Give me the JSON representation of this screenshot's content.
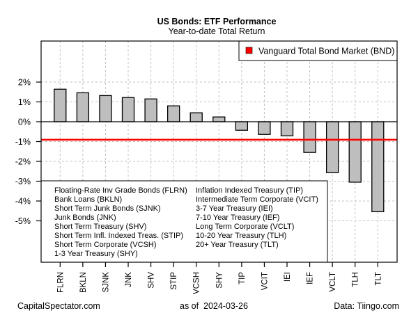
{
  "chart_data": {
    "type": "bar",
    "title": "US Bonds: ETF Performance",
    "subtitle": "Year-to-date Total Return",
    "xlabel": "",
    "ylabel": "",
    "ylim": [
      -7.1,
      4.1
    ],
    "grid": true,
    "yticks": [
      2,
      1,
      0,
      -1,
      -2,
      -3,
      -4,
      -5
    ],
    "ytick_labels": [
      "2%",
      "1%",
      "0%",
      "-1%",
      "-2%",
      "-3%",
      "-4%",
      "-5%"
    ],
    "categories": [
      "FLRN",
      "BKLN",
      "SJNK",
      "JNK",
      "SHV",
      "STIP",
      "VCSH",
      "SHY",
      "TIP",
      "VCIT",
      "IEI",
      "IEF",
      "VCLT",
      "TLH",
      "TLT"
    ],
    "values": [
      1.64,
      1.46,
      1.32,
      1.22,
      1.15,
      0.8,
      0.45,
      0.24,
      -0.43,
      -0.64,
      -0.71,
      -1.55,
      -2.57,
      -3.05,
      -4.54
    ],
    "bar_color": "#bebebe",
    "reference_line": {
      "name": "Vanguard Total Bond Market (BND)",
      "value": -0.91,
      "color": "#ff0000"
    },
    "legend": {
      "placement": "top-right",
      "entries": [
        "Vanguard Total Bond Market (BND)"
      ]
    },
    "key_legend": {
      "placement": "bottom-left",
      "column1": [
        "Floating-Rate Inv Grade Bonds (FLRN)",
        "Bank Loans (BKLN)",
        "Short Term Junk Bonds (SJNK)",
        "Junk Bonds (JNK)",
        "Short Term Treasury (SHV)",
        "Short Term Infl. Indexed Treas. (STIP)",
        "Short Term Corporate (VCSH)",
        "1-3 Year Treasury (SHY)"
      ],
      "column2": [
        "Inflation Indexed Treasury (TIP)",
        "Intermediate Term Corporate (VCIT)",
        "3-7 Year Treasury (IEI)",
        "7-10 Year Treasury (IEF)",
        "Long Term Corporate (VCLT)",
        "10-20 Year Treasury (TLH)",
        "20+ Year Treasury (TLT)"
      ]
    }
  },
  "footer": {
    "left": "CapitalSpectator.com",
    "center_prefix": "as of",
    "center_date": "2024-03-26",
    "right": "Data: Tiingo.com"
  }
}
